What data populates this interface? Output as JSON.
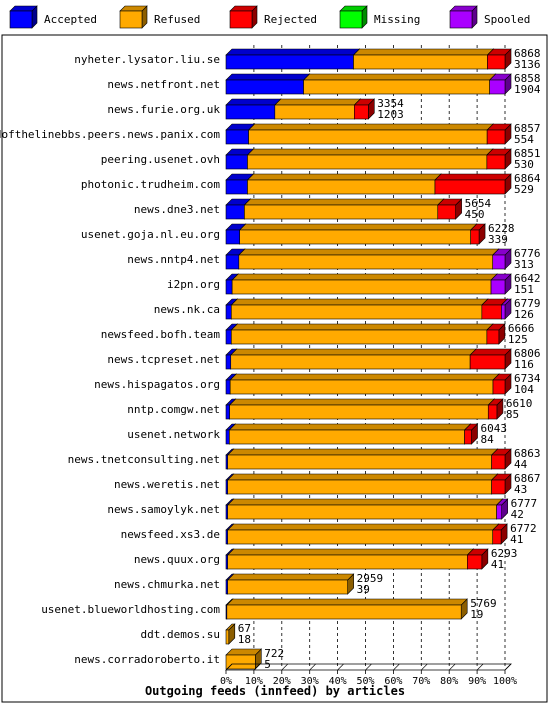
{
  "chart_data": {
    "type": "bar",
    "orientation": "horizontal",
    "stacked": true,
    "three_d": true,
    "xlabel": "Outgoing feeds (innfeed) by articles",
    "xlim": [
      0,
      100
    ],
    "x_ticks": [
      "0%",
      "10%",
      "20%",
      "30%",
      "40%",
      "50%",
      "60%",
      "70%",
      "80%",
      "90%",
      "100%"
    ],
    "legend_position": "top",
    "legend": [
      {
        "name": "Accepted",
        "color": "#0000ff"
      },
      {
        "name": "Refused",
        "color": "#ffaa00"
      },
      {
        "name": "Rejected",
        "color": "#ff0000"
      },
      {
        "name": "Missing",
        "color": "#00ff00"
      },
      {
        "name": "Spooled",
        "color": "#aa00ff"
      }
    ],
    "rows": [
      {
        "label": "nyheter.lysator.liu.se",
        "offered": "6868",
        "accepted_count": "3136",
        "segments": [
          45.7,
          48.0,
          6.3,
          0,
          0
        ]
      },
      {
        "label": "news.netfront.net",
        "offered": "6858",
        "accepted_count": "1904",
        "segments": [
          27.8,
          66.7,
          0,
          0,
          5.5
        ]
      },
      {
        "label": "news.furie.org.uk",
        "offered": "3354",
        "accepted_count": "1203",
        "segments": [
          17.5,
          28.5,
          5.0,
          0,
          0
        ]
      },
      {
        "label": "endofthelinebbs.peers.news.panix.com",
        "offered": "6857",
        "accepted_count": "554",
        "segments": [
          8.1,
          85.5,
          6.4,
          0,
          0
        ]
      },
      {
        "label": "peering.usenet.ovh",
        "offered": "6851",
        "accepted_count": "530",
        "segments": [
          7.7,
          85.8,
          6.5,
          0,
          0
        ]
      },
      {
        "label": "photonic.trudheim.com",
        "offered": "6864",
        "accepted_count": "529",
        "segments": [
          7.7,
          67.2,
          25.1,
          0,
          0
        ]
      },
      {
        "label": "news.dne3.net",
        "offered": "5654",
        "accepted_count": "450",
        "segments": [
          6.6,
          69.3,
          6.4,
          0,
          0
        ]
      },
      {
        "label": "usenet.goja.nl.eu.org",
        "offered": "6228",
        "accepted_count": "339",
        "segments": [
          4.9,
          82.8,
          3.0,
          0,
          0
        ]
      },
      {
        "label": "news.nntp4.net",
        "offered": "6776",
        "accepted_count": "313",
        "segments": [
          4.6,
          91.0,
          0,
          0,
          4.4
        ]
      },
      {
        "label": "i2pn.org",
        "offered": "6642",
        "accepted_count": "151",
        "segments": [
          2.2,
          92.8,
          0,
          0,
          5.0
        ]
      },
      {
        "label": "news.nk.ca",
        "offered": "6779",
        "accepted_count": "126",
        "segments": [
          1.9,
          89.8,
          7.0,
          0,
          1.3
        ]
      },
      {
        "label": "newsfeed.bofh.team",
        "offered": "6666",
        "accepted_count": "125",
        "segments": [
          1.9,
          91.6,
          4.3,
          0,
          0
        ]
      },
      {
        "label": "news.tcpreset.net",
        "offered": "6806",
        "accepted_count": "116",
        "segments": [
          1.7,
          85.8,
          12.5,
          0,
          0
        ]
      },
      {
        "label": "news.hispagatos.org",
        "offered": "6734",
        "accepted_count": "104",
        "segments": [
          1.5,
          94.2,
          4.3,
          0,
          0
        ]
      },
      {
        "label": "nntp.comgw.net",
        "offered": "6610",
        "accepted_count": "85",
        "segments": [
          1.3,
          92.7,
          3.1,
          0,
          0
        ]
      },
      {
        "label": "usenet.network",
        "offered": "6043",
        "accepted_count": "84",
        "segments": [
          1.2,
          84.3,
          2.5,
          0,
          0
        ]
      },
      {
        "label": "news.tnetconsulting.net",
        "offered": "6863",
        "accepted_count": "44",
        "segments": [
          0.6,
          94.6,
          4.8,
          0,
          0
        ]
      },
      {
        "label": "news.weretis.net",
        "offered": "6867",
        "accepted_count": "43",
        "segments": [
          0.6,
          94.6,
          4.8,
          0,
          0
        ]
      },
      {
        "label": "news.samoylyk.net",
        "offered": "6777",
        "accepted_count": "42",
        "segments": [
          0.6,
          96.4,
          0,
          0,
          1.8
        ]
      },
      {
        "label": "newsfeed.xs3.de",
        "offered": "6772",
        "accepted_count": "41",
        "segments": [
          0.6,
          95.0,
          3.0,
          0,
          0
        ]
      },
      {
        "label": "news.quux.org",
        "offered": "6293",
        "accepted_count": "41",
        "segments": [
          0.6,
          85.9,
          5.2,
          0,
          0
        ]
      },
      {
        "label": "news.chmurka.net",
        "offered": "2959",
        "accepted_count": "39",
        "segments": [
          0.6,
          43.0,
          0,
          0,
          0
        ]
      },
      {
        "label": "usenet.blueworldhosting.com",
        "offered": "5769",
        "accepted_count": "19",
        "segments": [
          0.3,
          84.0,
          0,
          0,
          0
        ]
      },
      {
        "label": "ddt.demos.su",
        "offered": "67",
        "accepted_count": "18",
        "segments": [
          0,
          1.0,
          0,
          0,
          0
        ]
      },
      {
        "label": "news.corradoroberto.it",
        "offered": "722",
        "accepted_count": "5",
        "segments": [
          0,
          10.5,
          0,
          0,
          0
        ]
      }
    ]
  }
}
